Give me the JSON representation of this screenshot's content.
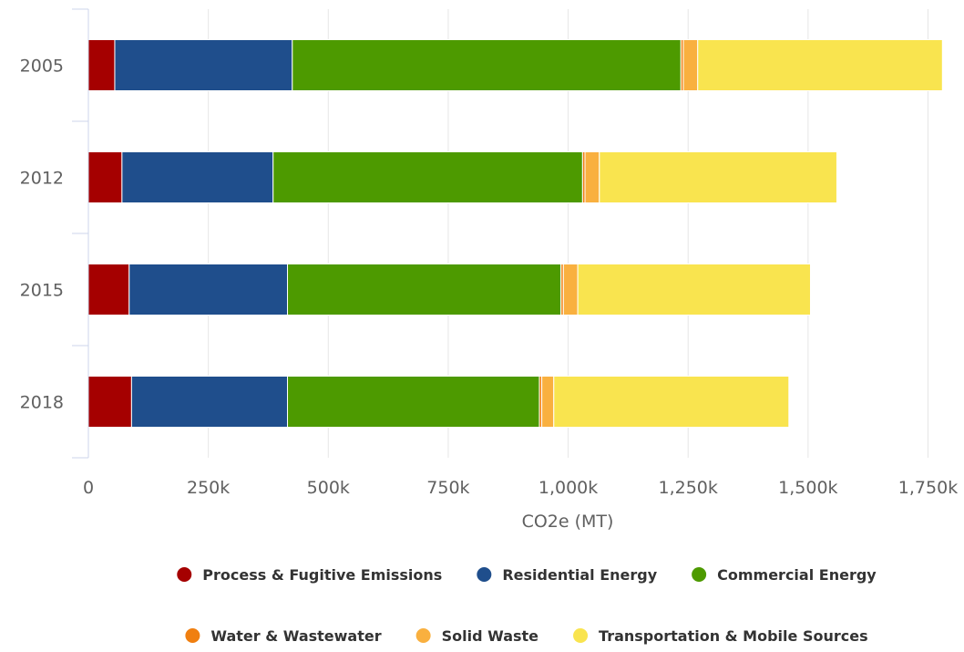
{
  "chart_data": {
    "type": "bar",
    "orientation": "horizontal",
    "stacked": true,
    "categories": [
      "2005",
      "2012",
      "2015",
      "2018"
    ],
    "series": [
      {
        "name": "Process & Fugitive Emissions",
        "color": "#a50000",
        "values": [
          55000,
          70000,
          85000,
          90000
        ]
      },
      {
        "name": "Residential Energy",
        "color": "#1f4e8c",
        "values": [
          370000,
          315000,
          330000,
          325000
        ]
      },
      {
        "name": "Commercial Energy",
        "color": "#4d9a00",
        "values": [
          810000,
          645000,
          570000,
          525000
        ]
      },
      {
        "name": "Water & Wastewater",
        "color": "#f07f10",
        "values": [
          5000,
          5000,
          5000,
          5000
        ]
      },
      {
        "name": "Solid Waste",
        "color": "#f9b03f",
        "values": [
          30000,
          30000,
          30000,
          25000
        ]
      },
      {
        "name": "Transportation & Mobile Sources",
        "color": "#f9e44f",
        "values": [
          510000,
          495000,
          485000,
          490000
        ]
      }
    ],
    "xlabel": "CO2e (MT)",
    "ylabel": "",
    "title": "",
    "xlim": [
      0,
      1800000
    ],
    "xticks": [
      0,
      250000,
      500000,
      750000,
      1000000,
      1250000,
      1500000,
      1750000
    ],
    "xtick_labels": [
      "0",
      "250k",
      "500k",
      "750k",
      "1,000k",
      "1,250k",
      "1,500k",
      "1,750k"
    ],
    "grid": true,
    "legend_position": "bottom"
  }
}
